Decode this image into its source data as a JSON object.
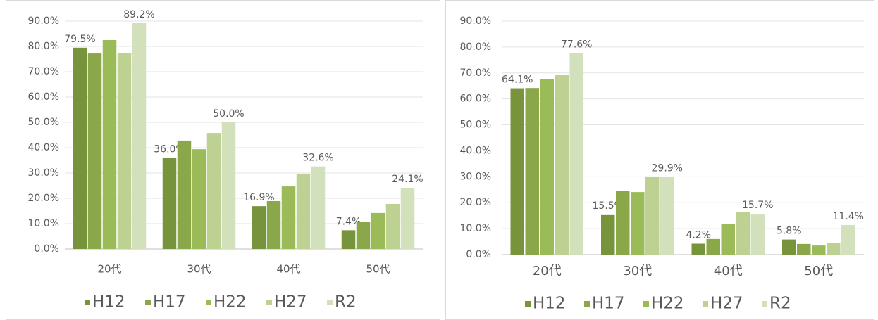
{
  "chart_data": [
    {
      "type": "bar",
      "categories": [
        "20代",
        "30代",
        "40代",
        "50代"
      ],
      "series": [
        {
          "name": "H12",
          "color": "#77933c",
          "values": [
            79.5,
            36.0,
            16.9,
            7.4
          ],
          "value_labels": [
            "79.5%",
            "36.0%",
            "16.9%",
            "7.4%"
          ]
        },
        {
          "name": "H17",
          "color": "#8aa84a",
          "values": [
            77.2,
            42.8,
            18.9,
            10.6
          ],
          "value_labels": [
            null,
            null,
            null,
            null
          ]
        },
        {
          "name": "H22",
          "color": "#9bbb59",
          "values": [
            82.5,
            39.4,
            24.7,
            14.2
          ],
          "value_labels": [
            null,
            null,
            null,
            null
          ]
        },
        {
          "name": "H27",
          "color": "#bcd192",
          "values": [
            77.5,
            45.8,
            29.7,
            17.8
          ],
          "value_labels": [
            null,
            null,
            null,
            null
          ]
        },
        {
          "name": "R2",
          "color": "#d3e0bc",
          "values": [
            89.2,
            50.0,
            32.6,
            24.1
          ],
          "value_labels": [
            "89.2%",
            "50.0%",
            "32.6%",
            "24.1%"
          ]
        }
      ],
      "ylim": [
        0,
        90
      ],
      "yticks": [
        {
          "value": 0,
          "label": "0.0%"
        },
        {
          "value": 10,
          "label": "10.0%"
        },
        {
          "value": 20,
          "label": "20.0%"
        },
        {
          "value": 30,
          "label": "30.0%"
        },
        {
          "value": 40,
          "label": "40.0%"
        },
        {
          "value": 50,
          "label": "50.0%"
        },
        {
          "value": 60,
          "label": "60.0%"
        },
        {
          "value": 70,
          "label": "70.0%"
        },
        {
          "value": 80,
          "label": "80.0%"
        },
        {
          "value": 90,
          "label": "90.0%"
        }
      ],
      "grid": true,
      "legend": "bottom"
    },
    {
      "type": "bar",
      "categories": [
        "20代",
        "30代",
        "40代",
        "50代"
      ],
      "series": [
        {
          "name": "H12",
          "color": "#77933c",
          "values": [
            64.1,
            15.5,
            4.2,
            5.8
          ],
          "value_labels": [
            "64.1%",
            "15.5%",
            "4.2%",
            "5.8%"
          ]
        },
        {
          "name": "H17",
          "color": "#8aa84a",
          "values": [
            64.2,
            24.4,
            6.0,
            4.1
          ],
          "value_labels": [
            null,
            null,
            null,
            null
          ]
        },
        {
          "name": "H22",
          "color": "#9bbb59",
          "values": [
            67.5,
            24.1,
            11.7,
            3.5
          ],
          "value_labels": [
            null,
            null,
            null,
            null
          ]
        },
        {
          "name": "H27",
          "color": "#bcd192",
          "values": [
            69.4,
            30.1,
            16.3,
            4.6
          ],
          "value_labels": [
            null,
            null,
            null,
            null
          ]
        },
        {
          "name": "R2",
          "color": "#d3e0bc",
          "values": [
            77.6,
            29.9,
            15.7,
            11.4
          ],
          "value_labels": [
            "77.6%",
            "29.9%",
            "15.7%",
            "11.4%"
          ]
        }
      ],
      "ylim": [
        0,
        90
      ],
      "yticks": [
        {
          "value": 0,
          "label": "0.0%"
        },
        {
          "value": 10,
          "label": "10.0%"
        },
        {
          "value": 20,
          "label": "20.0%"
        },
        {
          "value": 30,
          "label": "30.0%"
        },
        {
          "value": 40,
          "label": "40.0%"
        },
        {
          "value": 50,
          "label": "50.0%"
        },
        {
          "value": 60,
          "label": "60.0%"
        },
        {
          "value": 70,
          "label": "70.0%"
        },
        {
          "value": 80,
          "label": "80.0%"
        },
        {
          "value": 90,
          "label": "90.0%"
        }
      ],
      "grid": true,
      "legend": "bottom"
    }
  ]
}
